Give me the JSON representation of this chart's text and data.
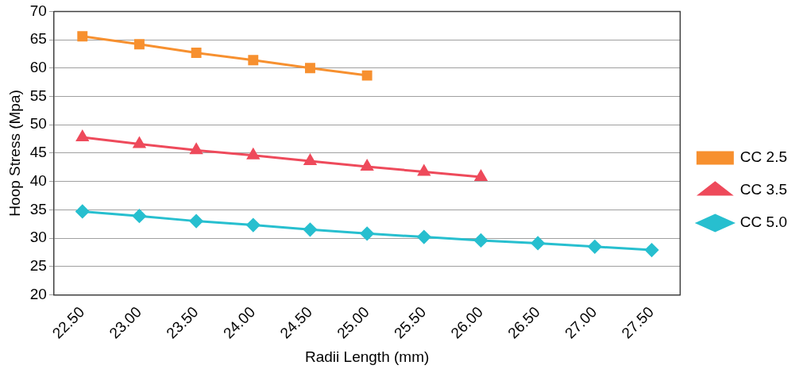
{
  "chart_data": {
    "type": "line",
    "xlabel": "Radii Length (mm)",
    "ylabel": "Hoop Stress (Mpa)",
    "categories": [
      "22.50",
      "23.00",
      "23.50",
      "24.00",
      "24.50",
      "25.00",
      "25.50",
      "26.00",
      "26.50",
      "27.00",
      "27.50"
    ],
    "series": [
      {
        "name": "CC 2.5",
        "color": "#f7902f",
        "marker": "square",
        "values": [
          65.6,
          64.2,
          62.7,
          61.4,
          60.0,
          58.7,
          null,
          null,
          null,
          null,
          null
        ]
      },
      {
        "name": "CC 3.5",
        "color": "#ee4a5b",
        "marker": "triangle",
        "values": [
          47.8,
          46.6,
          45.5,
          44.6,
          43.6,
          42.6,
          41.7,
          40.8,
          null,
          null,
          null
        ]
      },
      {
        "name": "CC 5.0",
        "color": "#27bfcf",
        "marker": "diamond",
        "values": [
          34.7,
          33.9,
          33.0,
          32.3,
          31.5,
          30.8,
          30.2,
          29.6,
          29.1,
          28.5,
          27.9
        ]
      }
    ],
    "ylim": [
      20,
      70
    ],
    "yticks": [
      20,
      25,
      30,
      35,
      40,
      45,
      50,
      55,
      60,
      65,
      70
    ],
    "grid": "y",
    "legend": "right",
    "line_style": "solid"
  }
}
